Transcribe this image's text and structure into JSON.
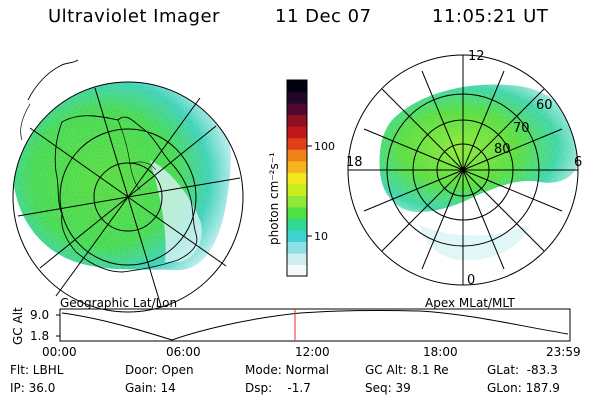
{
  "header": {
    "title": "Ultraviolet Imager",
    "date": "11 Dec 07",
    "time": "11:05:21 UT"
  },
  "colorbar": {
    "label": "photon cm⁻²s⁻¹",
    "tick_labels": [
      "100",
      "10"
    ],
    "colors": [
      "#f4fafa",
      "#cfeef0",
      "#8ee0e4",
      "#3fd2d0",
      "#30d890",
      "#50e040",
      "#8ee838",
      "#c8ee20",
      "#f0e820",
      "#f6b420",
      "#f08018",
      "#e04018",
      "#c01818",
      "#901020",
      "#500830",
      "#200828",
      "#000010"
    ]
  },
  "geo_panel": {
    "caption": "Geographic Lat/Lon"
  },
  "mag_panel": {
    "caption": "Apex MLat/MLT",
    "mlt_labels": {
      "top": "12",
      "left": "18",
      "right": "6",
      "bottom": "0"
    },
    "lat_labels": [
      "60",
      "70",
      "80"
    ]
  },
  "altitude_plot": {
    "ylabel": "GC Alt",
    "y_ticks": [
      "9.0",
      "1.8"
    ],
    "x_ticks": [
      "00:00",
      "06:00",
      "12:00",
      "18:00",
      "23:59"
    ],
    "current_marker": "11:05",
    "marker_color": "#e03030"
  },
  "status": {
    "filter": "Flt: LBHL",
    "ip": "IP: 36.0",
    "door": "Door: Open",
    "gain": "Gain: 14",
    "mode": "Mode: Normal",
    "dsp": "Dsp:    -1.7",
    "gc_alt": "GC Alt: 8.1 Re",
    "seq": "Seq: 39",
    "glat": "GLat:  -83.3",
    "glon": "GLon: 187.9"
  }
}
